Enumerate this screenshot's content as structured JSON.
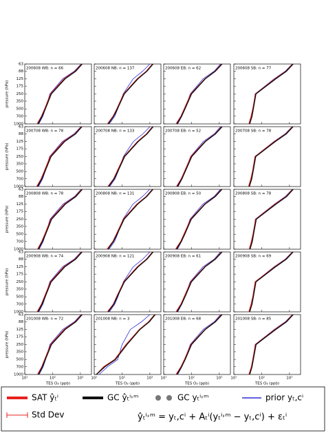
{
  "chart_data": {
    "type": "line",
    "ylabel": "pressure (hPa)",
    "xlabel": "TES O₃ (ppb)",
    "log_x": true,
    "log_y": true,
    "xlim": [
      10,
      2500
    ],
    "xticks": [
      {
        "value": 10,
        "label": "10¹"
      },
      {
        "value": 100,
        "label": "10²"
      },
      {
        "value": 1000,
        "label": "10³"
      }
    ],
    "ylim": [
      1000,
      63
    ],
    "yticks": [
      63,
      88,
      125,
      175,
      250,
      350,
      500,
      700,
      1000
    ],
    "levels": [
      1000,
      700,
      500,
      250,
      125,
      88,
      63
    ],
    "series": [
      {
        "name": "SAT ŷₜⁱ",
        "color": "#e8201c"
      },
      {
        "name": "GC ŷₜⁱ˒ᵐ",
        "color": "#111111"
      },
      {
        "name": "prior yₜ,cⁱ",
        "color": "#2b2bd6"
      },
      {
        "name": "GC yₜⁱ˒ᵐ",
        "color": "#777777"
      },
      {
        "name": "Std Dev",
        "color": "#e8201c"
      }
    ],
    "formula": "ŷₜⁱ˒ᵐ = yₜ,cⁱ + Aₜⁱ(yₜⁱ˒ᵐ − yₜ,cⁱ) + εₜⁱ",
    "panels": [
      {
        "title": "200608 WB: n = 66",
        "values": [
          [
            28,
            40,
            52,
            85,
            260,
            650,
            1100
          ],
          [
            30,
            42,
            55,
            90,
            280,
            680,
            1150
          ],
          [
            32,
            45,
            55,
            80,
            230,
            600,
            1050
          ]
        ]
      },
      {
        "title": "200608 NB: n = 137",
        "values": [
          [
            30,
            48,
            65,
            115,
            350,
            750,
            1250
          ],
          [
            32,
            50,
            68,
            120,
            370,
            780,
            1300
          ],
          [
            35,
            55,
            70,
            110,
            250,
            550,
            1000
          ]
        ]
      },
      {
        "title": "200608 EB: n = 62",
        "values": [
          [
            28,
            42,
            55,
            95,
            300,
            700,
            1200
          ],
          [
            30,
            44,
            58,
            100,
            310,
            720,
            1250
          ],
          [
            32,
            45,
            58,
            90,
            260,
            650,
            1100
          ]
        ]
      },
      {
        "title": "200608 SB: n = 77",
        "values": [
          [
            35,
            42,
            48,
            60,
            300,
            750,
            1300
          ],
          [
            37,
            45,
            50,
            62,
            320,
            780,
            1350
          ],
          [
            36,
            44,
            50,
            58,
            280,
            700,
            1250
          ]
        ]
      },
      {
        "title": "200708 WB: n = 78",
        "values": [
          [
            27,
            39,
            50,
            82,
            250,
            640,
            1080
          ],
          [
            29,
            41,
            53,
            88,
            270,
            670,
            1130
          ],
          [
            31,
            44,
            54,
            78,
            225,
            590,
            1040
          ]
        ]
      },
      {
        "title": "200708 NB: n = 133",
        "values": [
          [
            31,
            50,
            66,
            118,
            360,
            760,
            1260
          ],
          [
            33,
            52,
            70,
            124,
            380,
            790,
            1310
          ],
          [
            36,
            56,
            72,
            112,
            255,
            560,
            1010
          ]
        ]
      },
      {
        "title": "200708 EB: n = 52",
        "values": [
          [
            29,
            43,
            56,
            96,
            305,
            705,
            1210
          ],
          [
            31,
            45,
            59,
            102,
            315,
            725,
            1260
          ],
          [
            33,
            46,
            59,
            92,
            265,
            655,
            1110
          ]
        ]
      },
      {
        "title": "200708 SB: n = 78",
        "values": [
          [
            34,
            41,
            47,
            58,
            290,
            740,
            1290
          ],
          [
            36,
            44,
            49,
            61,
            310,
            770,
            1340
          ],
          [
            35,
            43,
            49,
            57,
            275,
            690,
            1240
          ]
        ]
      },
      {
        "title": "200808 WB: n = 78",
        "values": [
          [
            29,
            41,
            53,
            87,
            265,
            660,
            1110
          ],
          [
            31,
            43,
            56,
            92,
            285,
            690,
            1160
          ],
          [
            33,
            46,
            56,
            81,
            235,
            610,
            1060
          ]
        ]
      },
      {
        "title": "200808 NB: n = 131",
        "values": [
          [
            29,
            47,
            63,
            112,
            340,
            740,
            1240
          ],
          [
            31,
            49,
            66,
            118,
            360,
            770,
            1290
          ],
          [
            34,
            54,
            69,
            108,
            245,
            545,
            995
          ]
        ]
      },
      {
        "title": "200808 EB: n = 50",
        "values": [
          [
            27,
            41,
            54,
            93,
            295,
            695,
            1190
          ],
          [
            29,
            43,
            57,
            98,
            305,
            715,
            1240
          ],
          [
            31,
            44,
            57,
            88,
            255,
            645,
            1095
          ]
        ]
      },
      {
        "title": "200808 SB: n = 78",
        "values": [
          [
            36,
            43,
            49,
            61,
            305,
            755,
            1310
          ],
          [
            38,
            46,
            51,
            64,
            325,
            785,
            1360
          ],
          [
            37,
            45,
            51,
            59,
            285,
            705,
            1255
          ]
        ]
      },
      {
        "title": "200908 WB: n = 74",
        "values": [
          [
            28,
            40,
            51,
            84,
            255,
            645,
            1095
          ],
          [
            30,
            42,
            54,
            89,
            275,
            675,
            1145
          ],
          [
            32,
            45,
            55,
            79,
            228,
            595,
            1045
          ]
        ]
      },
      {
        "title": "200908 NB: n = 121",
        "values": [
          [
            30,
            49,
            64,
            116,
            355,
            755,
            1255
          ],
          [
            32,
            51,
            67,
            121,
            375,
            785,
            1305
          ],
          [
            35,
            55,
            71,
            111,
            252,
            552,
            1002
          ]
        ]
      },
      {
        "title": "200908 EB: n = 61",
        "values": [
          [
            28,
            42,
            55,
            94,
            298,
            698,
            1198
          ],
          [
            30,
            44,
            58,
            99,
            308,
            718,
            1248
          ],
          [
            32,
            45,
            58,
            89,
            258,
            648,
            1098
          ]
        ]
      },
      {
        "title": "200908 SB: n = 69",
        "values": [
          [
            35,
            42,
            48,
            59,
            295,
            745,
            1295
          ],
          [
            37,
            45,
            50,
            62,
            315,
            775,
            1345
          ],
          [
            36,
            44,
            50,
            58,
            278,
            698,
            1248
          ]
        ]
      },
      {
        "title": "201008 WB: n = 72",
        "values": [
          [
            29,
            41,
            52,
            86,
            262,
            652,
            1102
          ],
          [
            31,
            43,
            55,
            91,
            282,
            682,
            1152
          ],
          [
            33,
            46,
            56,
            80,
            232,
            602,
            1052
          ]
        ]
      },
      {
        "title": "201008 NB: n = 3",
        "values": [
          [
            12,
            22,
            55,
            140,
            420,
            900,
            1500
          ],
          [
            12,
            24,
            58,
            150,
            440,
            950,
            1550
          ],
          [
            15,
            30,
            70,
            100,
            200,
            500,
            1000
          ]
        ]
      },
      {
        "title": "201008 EB: n = 68",
        "values": [
          [
            28,
            42,
            56,
            95,
            302,
            702,
            1202
          ],
          [
            30,
            44,
            59,
            100,
            312,
            722,
            1252
          ],
          [
            32,
            45,
            58,
            90,
            262,
            652,
            1102
          ]
        ]
      },
      {
        "title": "201008 SB: n = 85",
        "values": [
          [
            35,
            43,
            48,
            60,
            302,
            752,
            1302
          ],
          [
            37,
            45,
            50,
            63,
            322,
            782,
            1352
          ],
          [
            36,
            44,
            50,
            58,
            282,
            702,
            1252
          ]
        ]
      }
    ]
  }
}
